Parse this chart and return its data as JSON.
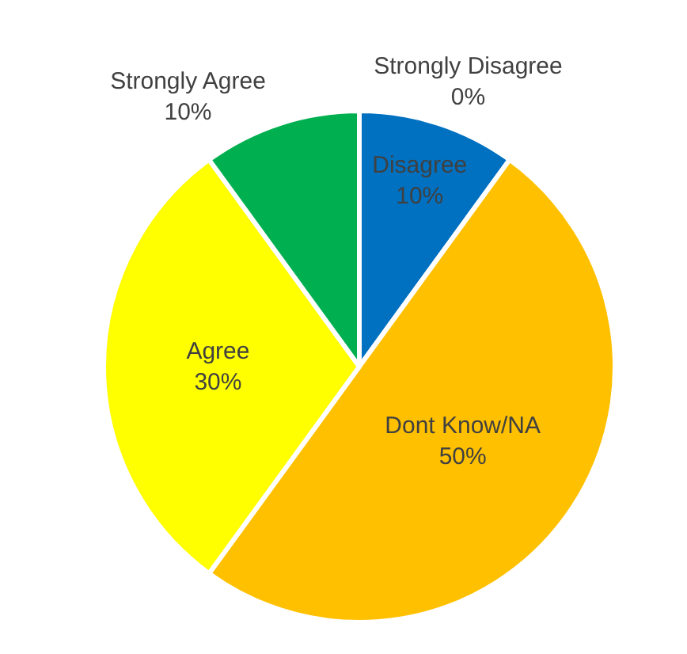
{
  "chart_data": {
    "type": "pie",
    "categories": [
      "Strongly Disagree",
      "Disagree",
      "Dont Know/NA",
      "Agree",
      "Strongly Agree"
    ],
    "values": [
      0,
      10,
      50,
      30,
      10
    ],
    "value_labels": [
      "0%",
      "10%",
      "50%",
      "30%",
      "10%"
    ],
    "colors": [
      "#a5a5a5",
      "#0070c0",
      "#ffc000",
      "#ffff00",
      "#00b050"
    ],
    "legend": false
  }
}
